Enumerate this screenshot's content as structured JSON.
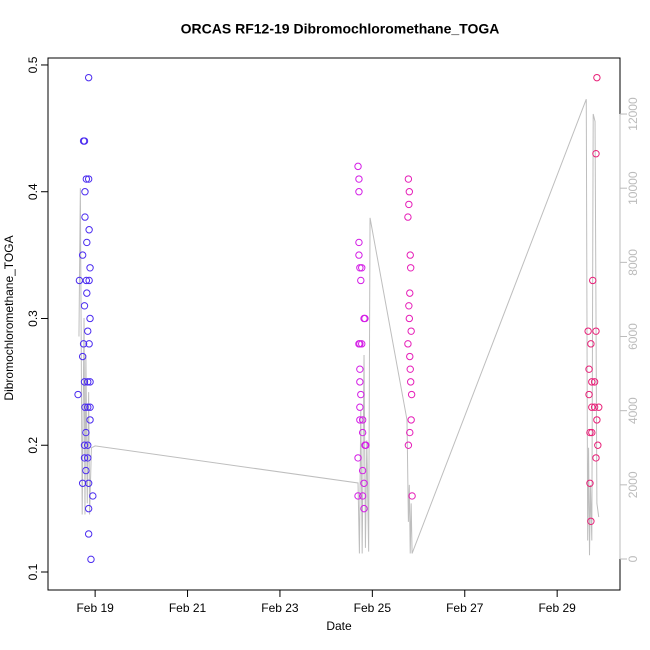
{
  "chart_data": {
    "type": "scatter",
    "title": "ORCAS RF12-19 Dibromochloromethane_TOGA",
    "x_label": "Date",
    "y_label": "Dibromochloromethane_TOGA",
    "xlim": [
      17.98,
      30.36
    ],
    "xticks": [
      {
        "value": 19,
        "label": "Feb 19"
      },
      {
        "value": 21,
        "label": "Feb 21"
      },
      {
        "value": 23,
        "label": "Feb 23"
      },
      {
        "value": 25,
        "label": "Feb 25"
      },
      {
        "value": 27,
        "label": "Feb 27"
      },
      {
        "value": 29,
        "label": "Feb 29"
      }
    ],
    "ylim": [
      0.0858,
      0.5055
    ],
    "yticks": [
      0.1,
      0.2,
      0.3,
      0.4,
      0.5
    ],
    "y2lim": [
      -836,
      13511
    ],
    "y2ticks": [
      0,
      2000,
      4000,
      6000,
      8000,
      10000,
      12000
    ],
    "y2_color": "#bbbbbb",
    "grid": false,
    "series": [
      {
        "color": "#4b2cf0",
        "x": [
          18.63,
          18.66,
          18.73,
          18.73,
          18.73,
          18.75,
          18.75,
          18.77,
          18.77,
          18.77,
          18.77,
          18.77,
          18.78,
          18.78,
          18.78,
          18.8,
          18.8,
          18.81,
          18.81,
          18.82,
          18.82,
          18.84,
          18.84,
          18.84,
          18.84,
          18.84,
          18.86,
          18.86,
          18.86,
          18.86,
          18.86,
          18.87,
          18.87,
          18.87,
          18.89,
          18.89,
          18.89,
          18.89,
          18.89,
          18.91,
          18.95
        ],
        "values": [
          0.24,
          0.33,
          0.35,
          0.27,
          0.17,
          0.44,
          0.28,
          0.31,
          0.25,
          0.2,
          0.19,
          0.44,
          0.4,
          0.38,
          0.23,
          0.21,
          0.18,
          0.33,
          0.41,
          0.36,
          0.32,
          0.29,
          0.25,
          0.23,
          0.2,
          0.19,
          0.15,
          0.49,
          0.41,
          0.17,
          0.13,
          0.37,
          0.33,
          0.28,
          0.25,
          0.22,
          0.34,
          0.3,
          0.23,
          0.11,
          0.16
        ]
      },
      {
        "color": "#d41ee6",
        "x": [
          24.69,
          24.69,
          24.69,
          24.71,
          24.71,
          24.71,
          24.71,
          24.71,
          24.73,
          24.73,
          24.73,
          24.73,
          24.73,
          24.73,
          24.75,
          24.75,
          24.77,
          24.77,
          24.79,
          24.79,
          24.79,
          24.79,
          24.82,
          24.82,
          24.82,
          24.84,
          24.84,
          24.86
        ],
        "values": [
          0.42,
          0.19,
          0.16,
          0.36,
          0.35,
          0.28,
          0.4,
          0.41,
          0.34,
          0.26,
          0.25,
          0.23,
          0.22,
          0.28,
          0.33,
          0.24,
          0.34,
          0.28,
          0.18,
          0.16,
          0.22,
          0.21,
          0.17,
          0.15,
          0.3,
          0.2,
          0.3,
          0.2
        ]
      },
      {
        "color": "#e61eb8",
        "x": [
          25.77,
          25.77,
          25.78,
          25.78,
          25.79,
          25.79,
          25.8,
          25.8,
          25.81,
          25.81,
          25.81,
          25.82,
          25.82,
          25.83,
          25.83,
          25.84,
          25.84,
          25.85,
          25.86
        ],
        "values": [
          0.38,
          0.28,
          0.41,
          0.2,
          0.39,
          0.31,
          0.4,
          0.3,
          0.32,
          0.27,
          0.21,
          0.26,
          0.35,
          0.34,
          0.25,
          0.29,
          0.22,
          0.24,
          0.16
        ]
      },
      {
        "color": "#e82078",
        "x": [
          29.67,
          29.69,
          29.69,
          29.71,
          29.71,
          29.73,
          29.73,
          29.75,
          29.75,
          29.75,
          29.77,
          29.81,
          29.81,
          29.84,
          29.84,
          29.84,
          29.86,
          29.86,
          29.88,
          29.9
        ],
        "values": [
          0.29,
          0.26,
          0.24,
          0.21,
          0.17,
          0.14,
          0.28,
          0.25,
          0.23,
          0.21,
          0.33,
          0.25,
          0.23,
          0.43,
          0.29,
          0.19,
          0.49,
          0.22,
          0.2,
          0.23
        ]
      },
      {
        "type": "line",
        "axis": "y2",
        "color": "#bebebe",
        "x": [
          18.65,
          18.68,
          18.72,
          18.76,
          18.78,
          18.8,
          18.83,
          18.86,
          18.88,
          18.92,
          19.0,
          24.69,
          24.72,
          24.75,
          24.78,
          24.82,
          24.85,
          24.88,
          24.92,
          24.95,
          25.75,
          25.78,
          25.8,
          25.82,
          25.84,
          25.86,
          29.63,
          29.66,
          29.68,
          29.7,
          29.72,
          29.75,
          29.78,
          29.82,
          29.86,
          29.9
        ],
        "values": [
          6000,
          10000,
          1200,
          6500,
          1200,
          5500,
          1500,
          4500,
          1200,
          3000,
          3050,
          2050,
          150,
          4000,
          150,
          5500,
          300,
          3200,
          200,
          9200,
          3750,
          1000,
          2000,
          150,
          1500,
          150,
          12400,
          500,
          3000,
          100,
          2000,
          500,
          12000,
          11800,
          1500,
          1130
        ]
      }
    ]
  }
}
